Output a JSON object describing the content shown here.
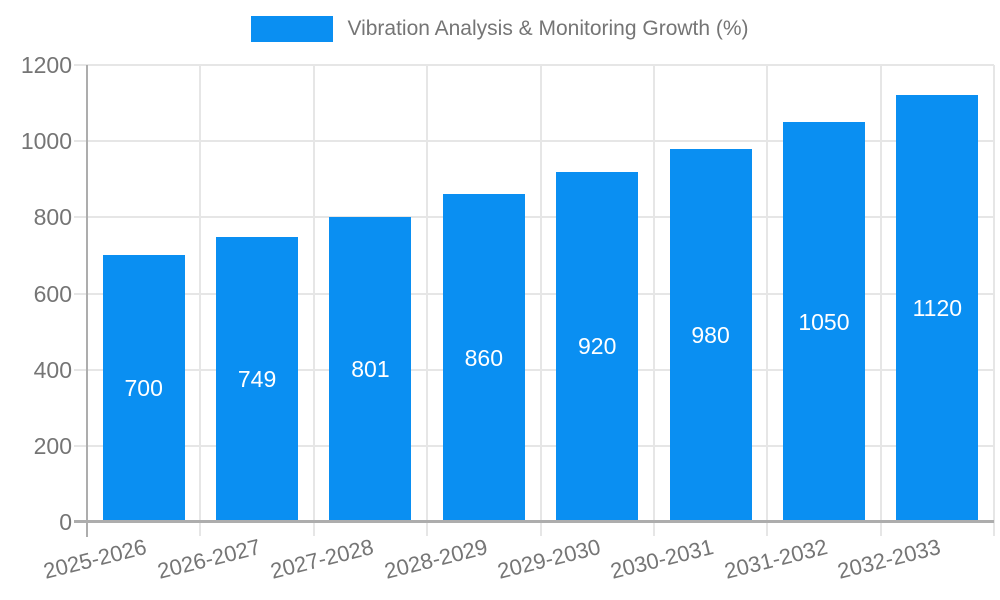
{
  "legend": {
    "position": "top",
    "label": "Vibration Analysis & Monitoring Growth (%)"
  },
  "chart_data": {
    "type": "bar",
    "title": "Vibration Analysis & Monitoring Growth (%)",
    "categories": [
      "2025-2026",
      "2026-2027",
      "2027-2028",
      "2028-2029",
      "2029-2030",
      "2030-2031",
      "2031-2032",
      "2032-2033"
    ],
    "values": [
      700,
      749,
      801,
      860,
      920,
      980,
      1050,
      1120
    ],
    "data_labels": [
      "700",
      "749",
      "801",
      "860",
      "920",
      "980",
      "1050",
      "1120"
    ],
    "xlabel": "",
    "ylabel": "",
    "ylim": [
      0,
      1200
    ],
    "y_ticks": [
      0,
      200,
      400,
      600,
      800,
      1000,
      1200
    ],
    "grid": true,
    "x_label_rotation_deg": -14,
    "legend_position": "top",
    "colors": {
      "bar": "#0a8ff2",
      "bar_label": "#ffffff",
      "axis_text": "#757575",
      "gridline": "#e6e6e6",
      "axis_line": "#adadad"
    }
  }
}
